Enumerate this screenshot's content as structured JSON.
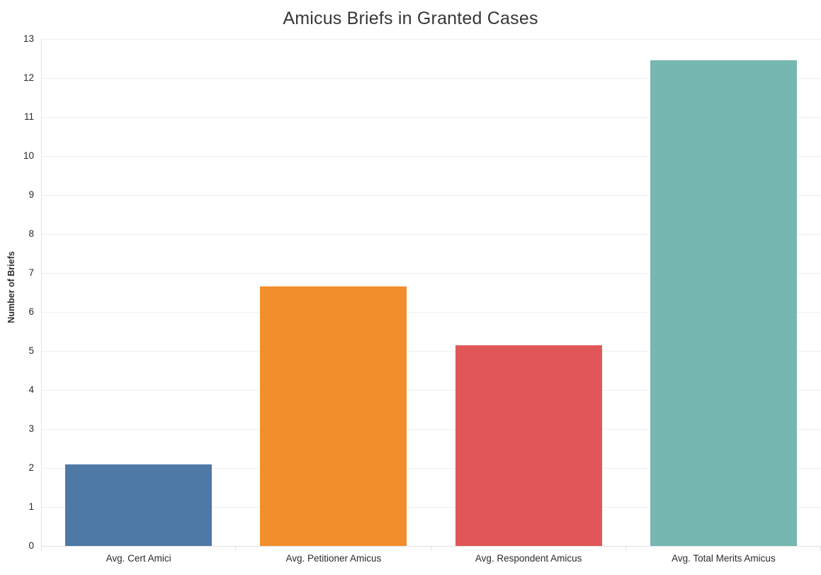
{
  "chart_data": {
    "type": "bar",
    "title": "Amicus Briefs in Granted Cases",
    "xlabel": "",
    "ylabel": "Number of Briefs",
    "categories": [
      "Avg. Cert Amici",
      "Avg. Petitioner Amicus",
      "Avg. Respondent Amicus",
      "Avg. Total Merits Amicus"
    ],
    "values": [
      2.1,
      6.65,
      5.15,
      12.45
    ],
    "bar_colors": [
      "#4e79a7",
      "#f28e2b",
      "#e15759",
      "#76b7b2"
    ],
    "ylim": [
      0,
      13
    ],
    "ytick_step": 1,
    "yticks": [
      0,
      1,
      2,
      3,
      4,
      5,
      6,
      7,
      8,
      9,
      10,
      11,
      12,
      13
    ],
    "grid": "horizontal",
    "legend": "none"
  },
  "style": {
    "background": "#ffffff",
    "title_color": "#373737",
    "tick_label_color": "#2b2b2b",
    "grid_color": "#efefef",
    "axis_color": "#e2e2e2"
  }
}
